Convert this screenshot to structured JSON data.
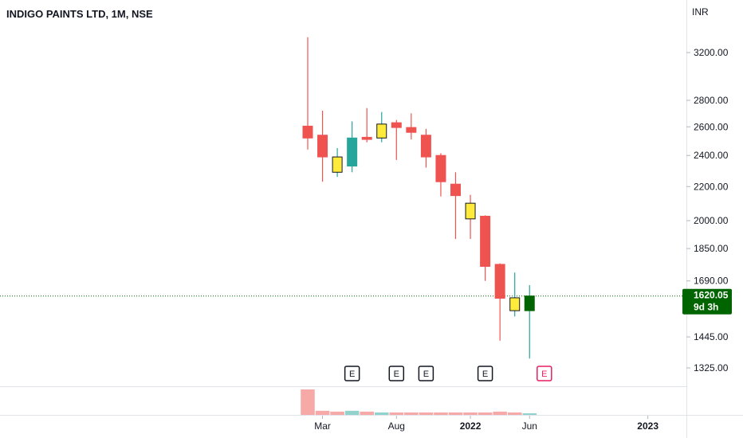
{
  "header": {
    "title": "INDIGO PAINTS LTD, 1M, NSE"
  },
  "currency": "INR",
  "current": {
    "price_label": "1620.05",
    "countdown": "9d 3h",
    "price": 1620.05
  },
  "colors": {
    "up": "#26a69a",
    "down": "#ef5350",
    "highlight": "#ffeb3b",
    "badge": "#006400",
    "current_line": "#006400",
    "earnings_border": "#131722",
    "earnings_next": "#e91e63"
  },
  "earnings_label": "E",
  "chart_data": {
    "type": "candlestick",
    "title": "INDIGO PAINTS LTD, 1M, NSE",
    "y_axis": {
      "label": "INR",
      "scale": "log",
      "range": [
        1250,
        3500
      ],
      "ticks": [
        "3200.00",
        "2800.00",
        "2600.00",
        "2400.00",
        "2200.00",
        "2000.00",
        "1850.00",
        "1690.00",
        "1445.00",
        "1325.00"
      ]
    },
    "x_axis": {
      "ticks": [
        {
          "label": "Mar",
          "bold": false
        },
        {
          "label": "Aug",
          "bold": false
        },
        {
          "label": "2022",
          "bold": true
        },
        {
          "label": "Jun",
          "bold": false
        },
        {
          "label": "2023",
          "bold": true
        }
      ]
    },
    "candles": [
      {
        "o": 2520,
        "h": 3340,
        "l": 2440,
        "c": 2605,
        "color": "down"
      },
      {
        "o": 2540,
        "h": 2720,
        "l": 2230,
        "c": 2390,
        "color": "down"
      },
      {
        "o": 2290,
        "h": 2450,
        "l": 2260,
        "c": 2390,
        "color": "highlight"
      },
      {
        "o": 2330,
        "h": 2640,
        "l": 2290,
        "c": 2520,
        "color": "up"
      },
      {
        "o": 2525,
        "h": 2740,
        "l": 2490,
        "c": 2510,
        "color": "down"
      },
      {
        "o": 2520,
        "h": 2710,
        "l": 2490,
        "c": 2620,
        "color": "highlight"
      },
      {
        "o": 2630,
        "h": 2650,
        "l": 2370,
        "c": 2595,
        "color": "down"
      },
      {
        "o": 2595,
        "h": 2700,
        "l": 2510,
        "c": 2560,
        "color": "down"
      },
      {
        "o": 2540,
        "h": 2585,
        "l": 2320,
        "c": 2390,
        "color": "down"
      },
      {
        "o": 2400,
        "h": 2415,
        "l": 2140,
        "c": 2230,
        "color": "down"
      },
      {
        "o": 2215,
        "h": 2290,
        "l": 1900,
        "c": 2145,
        "color": "down"
      },
      {
        "o": 2100,
        "h": 2150,
        "l": 1900,
        "c": 2010,
        "color": "highlight"
      },
      {
        "o": 2025,
        "h": 2030,
        "l": 1690,
        "c": 1760,
        "color": "down"
      },
      {
        "o": 1770,
        "h": 1775,
        "l": 1430,
        "c": 1610,
        "color": "down"
      },
      {
        "o": 1555,
        "h": 1730,
        "l": 1530,
        "c": 1612,
        "color": "highlight"
      },
      {
        "o": 1555,
        "h": 1670,
        "l": 1360,
        "c": 1620,
        "color": "up",
        "current": true
      }
    ],
    "earnings_markers": [
      {
        "index": 3,
        "upcoming": false
      },
      {
        "index": 6,
        "upcoming": false
      },
      {
        "index": 8,
        "upcoming": false
      },
      {
        "index": 12,
        "upcoming": false
      },
      {
        "index": 16,
        "upcoming": true
      }
    ],
    "volume": {
      "values": [
        31,
        5,
        4,
        5,
        4,
        3,
        3,
        3,
        3,
        3,
        3,
        3,
        3,
        4,
        3,
        2
      ],
      "colors": [
        "down",
        "down",
        "down",
        "up",
        "down",
        "up",
        "down",
        "down",
        "down",
        "down",
        "down",
        "down",
        "down",
        "down",
        "down",
        "up"
      ]
    }
  }
}
